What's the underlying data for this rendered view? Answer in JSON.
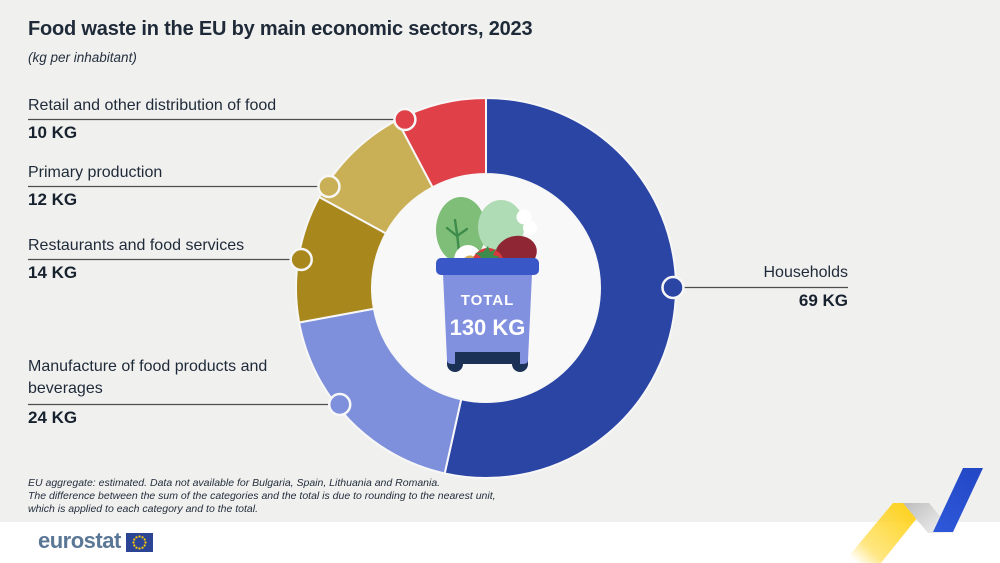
{
  "title": "Food waste in the EU by main economic sectors, 2023",
  "subtitle": "(kg per inhabitant)",
  "chart_data": {
    "type": "pie",
    "donut": true,
    "title": "Food waste in the EU by main economic sectors, 2023",
    "unit": "kg per inhabitant",
    "start_angle": "top",
    "direction": "clockwise",
    "center_label": {
      "line1": "TOTAL",
      "line2": "130 KG",
      "total_value": 130
    },
    "segments": [
      {
        "label": "Households",
        "value": 69,
        "value_label": "69 KG",
        "color": "#2B45A5"
      },
      {
        "label": "Manufacture of food products and beverages",
        "value": 24,
        "value_label": "24 KG",
        "color": "#7E90DC"
      },
      {
        "label": "Restaurants and food services",
        "value": 14,
        "value_label": "14 KG",
        "color": "#A8871D"
      },
      {
        "label": "Primary production",
        "value": 12,
        "value_label": "12 KG",
        "color": "#C9AF55"
      },
      {
        "label": "Retail and other distribution of food",
        "value": 10,
        "value_label": "10 KG",
        "color": "#E04048"
      }
    ],
    "legend_position": "callout-labels"
  },
  "footnotes": [
    "EU aggregate: estimated. Data not available for Bulgaria, Spain, Lithuania and Romania.",
    "The difference between the sum of the categories and the total is due to rounding to the nearest unit,",
    "which is applied to each category and to the total."
  ],
  "footer": {
    "logo_text": "eurostat"
  },
  "colors": {
    "background": "#F0F0EF",
    "bottom_strip": "#FFFFFF",
    "text": "#1F2A38",
    "donut_hole": "#F8F8F8",
    "separator": "#F7F7F7",
    "leader_line": "#4D4D4D",
    "bin_body": "#8290E0",
    "bin_lid": "#3A57C8",
    "bin_wheels": "#1C3156",
    "ribbon_yellow": "#FFD21A",
    "ribbon_blue": "#2950CE",
    "eu_flag_blue": "#2B4594",
    "eu_star_yellow": "#FFCC00"
  }
}
